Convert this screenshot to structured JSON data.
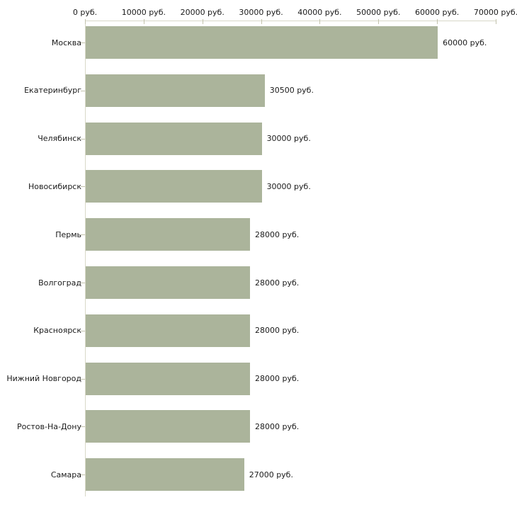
{
  "chart_data": {
    "type": "bar",
    "orientation": "horizontal",
    "categories": [
      "Москва",
      "Екатеринбург",
      "Челябинск",
      "Новосибирск",
      "Пермь",
      "Волгоград",
      "Красноярск",
      "Нижний Новгород",
      "Ростов-На-Дону",
      "Самара"
    ],
    "values": [
      60000,
      30500,
      30000,
      30000,
      28000,
      28000,
      28000,
      28000,
      28000,
      27000
    ],
    "value_labels": [
      "60000 руб.",
      "30500 руб.",
      "30000 руб.",
      "30000 руб.",
      "28000 руб.",
      "28000 руб.",
      "28000 руб.",
      "28000 руб.",
      "28000 руб.",
      "27000 руб."
    ],
    "unit": "руб.",
    "xlim": [
      0,
      70000
    ],
    "x_ticks": [
      0,
      10000,
      20000,
      30000,
      40000,
      50000,
      60000,
      70000
    ],
    "x_tick_labels": [
      "0 руб.",
      "10000 руб.",
      "20000 руб.",
      "30000 руб.",
      "40000 руб.",
      "50000 руб.",
      "60000 руб.",
      "70000 руб."
    ],
    "grid": false,
    "legend": false,
    "colors": {
      "bar": "#abb49b",
      "axis_line": "#d8d8c8",
      "tick_mark": "#c3c3ad",
      "text": "#1a1a1a",
      "background": "#ffffff"
    }
  }
}
